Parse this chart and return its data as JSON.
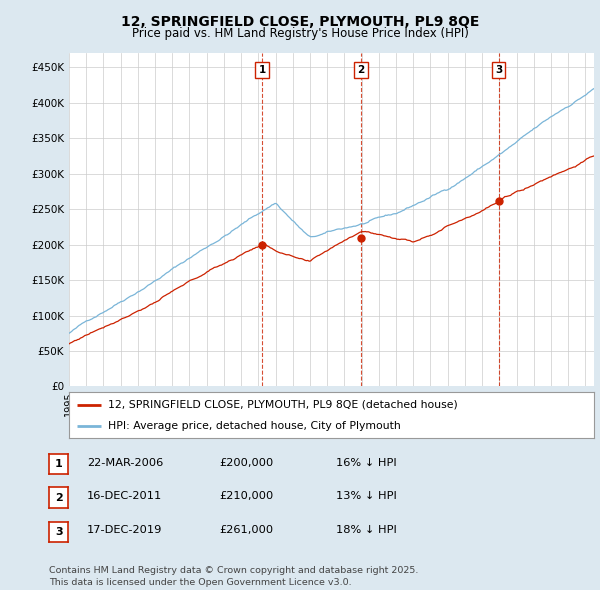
{
  "title": "12, SPRINGFIELD CLOSE, PLYMOUTH, PL9 8QE",
  "subtitle": "Price paid vs. HM Land Registry's House Price Index (HPI)",
  "ylabel_ticks": [
    "£0",
    "£50K",
    "£100K",
    "£150K",
    "£200K",
    "£250K",
    "£300K",
    "£350K",
    "£400K",
    "£450K"
  ],
  "ytick_vals": [
    0,
    50000,
    100000,
    150000,
    200000,
    250000,
    300000,
    350000,
    400000,
    450000
  ],
  "ylim": [
    0,
    470000
  ],
  "xlim_start": 1995.0,
  "xlim_end": 2025.5,
  "hpi_color": "#7ab5d8",
  "price_color": "#cc2200",
  "vline_color": "#cc2200",
  "sale_dates": [
    2006.22,
    2011.96,
    2019.96
  ],
  "sale_prices": [
    200000,
    210000,
    261000
  ],
  "sale_labels": [
    "1",
    "2",
    "3"
  ],
  "legend_label_price": "12, SPRINGFIELD CLOSE, PLYMOUTH, PL9 8QE (detached house)",
  "legend_label_hpi": "HPI: Average price, detached house, City of Plymouth",
  "table_rows": [
    [
      "1",
      "22-MAR-2006",
      "£200,000",
      "16% ↓ HPI"
    ],
    [
      "2",
      "16-DEC-2011",
      "£210,000",
      "13% ↓ HPI"
    ],
    [
      "3",
      "17-DEC-2019",
      "£261,000",
      "18% ↓ HPI"
    ]
  ],
  "footnote": "Contains HM Land Registry data © Crown copyright and database right 2025.\nThis data is licensed under the Open Government Licence v3.0.",
  "bg_color": "#dce8f0",
  "plot_bg_color": "#ffffff",
  "grid_color": "#cccccc"
}
